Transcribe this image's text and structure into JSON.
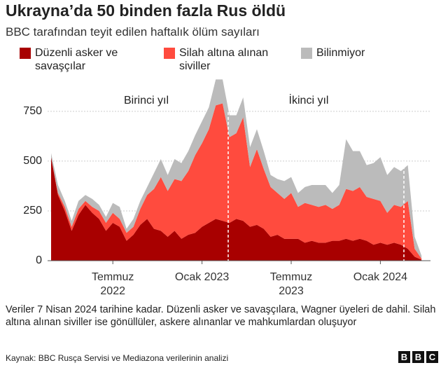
{
  "chart_data": {
    "type": "stacked-area",
    "title": "Ukrayna’da 50 binden fazla Rus öldü",
    "subtitle": "BBC tarafından teyit edilen haftalık ölüm sayıları",
    "categories": [
      null,
      null,
      null,
      null,
      null,
      null,
      null,
      null,
      null,
      "Temmuz 2022",
      null,
      null,
      null,
      null,
      null,
      null,
      null,
      null,
      null,
      null,
      null,
      null,
      "Ocak 2023",
      null,
      null,
      null,
      null,
      null,
      null,
      null,
      null,
      null,
      null,
      null,
      null,
      "Temmuz 2023",
      null,
      null,
      null,
      null,
      null,
      null,
      null,
      null,
      null,
      null,
      null,
      null,
      "Ocak 2024",
      null,
      null,
      null,
      null,
      null,
      null
    ],
    "series": [
      {
        "name": "Düzenli asker ve savaşçılar",
        "color": "#a80000",
        "values": [
          520,
          330,
          250,
          150,
          230,
          280,
          240,
          210,
          150,
          190,
          170,
          100,
          130,
          180,
          210,
          160,
          150,
          120,
          150,
          110,
          130,
          140,
          170,
          190,
          210,
          200,
          190,
          210,
          200,
          170,
          180,
          160,
          120,
          130,
          110,
          110,
          110,
          90,
          100,
          90,
          90,
          100,
          100,
          110,
          100,
          110,
          100,
          80,
          90,
          80,
          90,
          80,
          60,
          20,
          5
        ]
      },
      {
        "name": "Silah altına alınan siviller",
        "color": "#ff4b3e",
        "values": [
          0,
          10,
          20,
          20,
          30,
          20,
          30,
          40,
          40,
          50,
          40,
          40,
          40,
          80,
          120,
          200,
          270,
          230,
          260,
          290,
          320,
          390,
          420,
          470,
          570,
          590,
          430,
          430,
          520,
          300,
          380,
          300,
          250,
          210,
          200,
          230,
          160,
          200,
          180,
          180,
          190,
          160,
          180,
          250,
          250,
          260,
          220,
          230,
          210,
          160,
          190,
          190,
          240,
          40,
          5
        ]
      },
      {
        "name": "Bilinmiyor",
        "color": "#bbbbbb",
        "values": [
          20,
          40,
          30,
          30,
          40,
          30,
          40,
          30,
          30,
          50,
          60,
          20,
          40,
          40,
          40,
          80,
          90,
          80,
          100,
          90,
          100,
          100,
          110,
          110,
          130,
          120,
          110,
          90,
          100,
          100,
          100,
          90,
          60,
          70,
          90,
          80,
          70,
          80,
          100,
          110,
          100,
          80,
          100,
          250,
          200,
          180,
          160,
          180,
          220,
          190,
          190,
          180,
          180,
          60,
          15
        ]
      }
    ],
    "ylim": [
      0,
      950
    ],
    "yticks": [
      0,
      250,
      500,
      750
    ],
    "grid": true,
    "annotations": [
      "Birinci yıl",
      "İkinci yıl"
    ],
    "note": "Veriler 7 Nisan 2024 tarihine kadar. Düzenli asker ve savaşçılara, Wagner üyeleri de dahil. Silah altına alınan siviller ise gönüllüler, askere alınanlar ve mahkumlardan oluşuyor",
    "source": "Kaynak: BBC Rusça Servisi ve Mediazona verilerinin analizi",
    "logo": [
      "B",
      "B",
      "C"
    ]
  }
}
